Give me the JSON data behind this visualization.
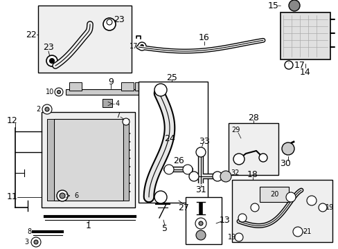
{
  "bg_color": "#ffffff",
  "fig_width": 4.89,
  "fig_height": 3.6,
  "dpi": 100,
  "line_color": "#000000",
  "inset_bg": "#efefef",
  "white": "#ffffff",
  "gray1": "#aaaaaa",
  "gray2": "#888888",
  "gray3": "#cccccc",
  "fs_num": 9,
  "fs_small": 7,
  "fs_tiny": 6
}
